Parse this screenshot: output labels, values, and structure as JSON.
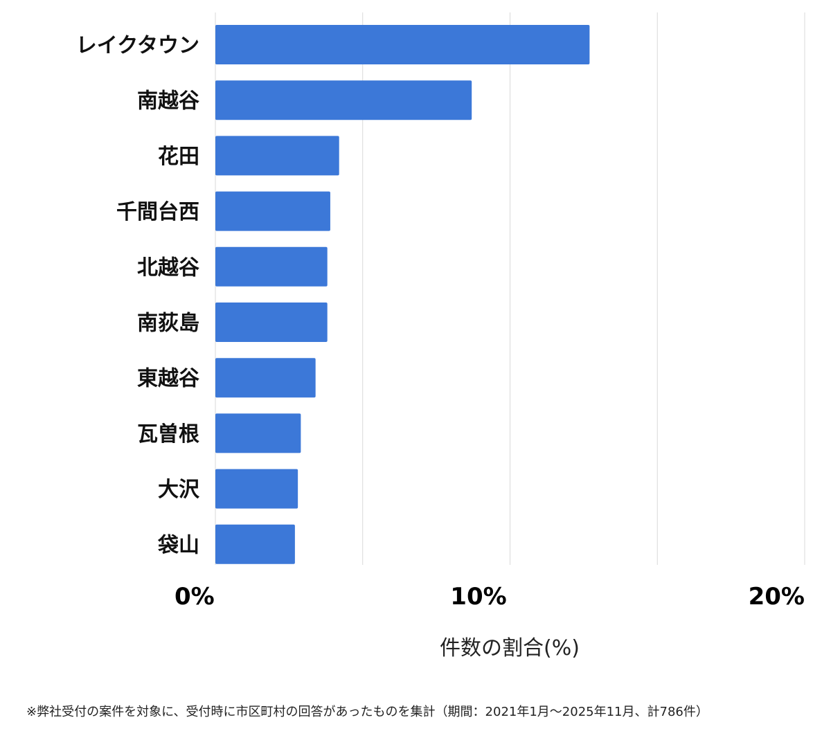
{
  "chart_data": {
    "type": "bar",
    "orientation": "horizontal",
    "categories": [
      "レイクタウン",
      "南越谷",
      "花田",
      "千間台西",
      "北越谷",
      "南荻島",
      "東越谷",
      "瓦曽根",
      "大沢",
      "袋山"
    ],
    "values": [
      12.7,
      8.7,
      4.2,
      3.9,
      3.8,
      3.8,
      3.4,
      2.9,
      2.8,
      2.7
    ],
    "xlim": [
      0,
      20
    ],
    "xticks": [
      0,
      10,
      20
    ],
    "xtick_labels": [
      "0%",
      "10%",
      "20%"
    ],
    "gridlines_at": [
      0,
      5,
      10,
      15,
      20
    ],
    "xlabel": "件数の割合(%)",
    "grid": true,
    "legend": "none",
    "bar_color": "#3c78d8"
  },
  "footnote": "※弊社受付の案件を対象に、受付時に市区町村の回答があったものを集計（期間：2021年1月～2025年11月、計786件）"
}
